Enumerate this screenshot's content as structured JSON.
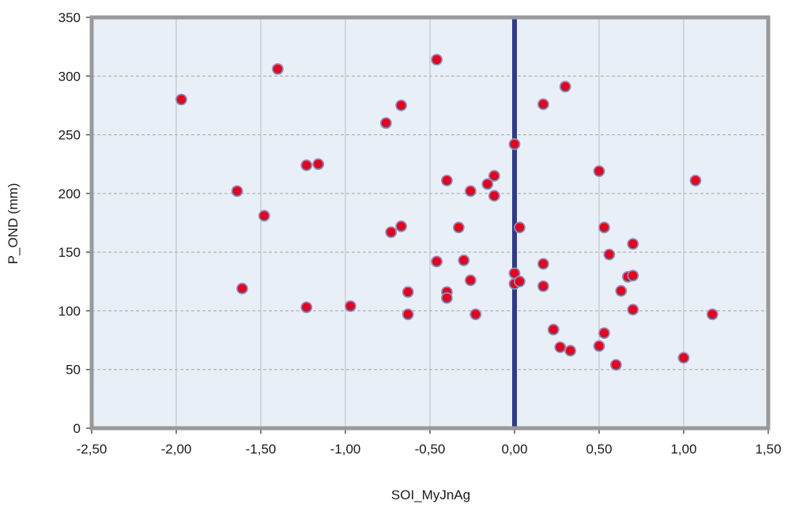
{
  "colors": {
    "plot_background": "#e9eff7",
    "frame": "#999999",
    "gridline": "#a6a6a6",
    "vertical_line": "#2e3a8c",
    "marker_fill": "#e8001c",
    "marker_stroke": "#7f93c4"
  },
  "chart_data": {
    "type": "scatter",
    "title": "",
    "xlabel": "SOI_MyJnAg",
    "ylabel": "P_OND (mm)",
    "xlim": [
      -2.5,
      1.5
    ],
    "ylim": [
      0,
      350
    ],
    "x_tick_values": [
      -2.5,
      -2.0,
      -1.5,
      -1.0,
      -0.5,
      0.0,
      0.5,
      1.0,
      1.5
    ],
    "x_tick_labels": [
      "-2,50",
      "-2,00",
      "-1,50",
      "-1,00",
      "-0,50",
      "0,00",
      "0,50",
      "1,00",
      "1,50"
    ],
    "y_tick_values": [
      0,
      50,
      100,
      150,
      200,
      250,
      300,
      350
    ],
    "y_tick_labels": [
      "0",
      "50",
      "100",
      "150",
      "200",
      "250",
      "300",
      "350"
    ],
    "grid": "horizontal dashed",
    "reference_line_x": 0,
    "series": [
      {
        "points": [
          [
            -1.97,
            280
          ],
          [
            -1.4,
            306
          ],
          [
            -1.64,
            202
          ],
          [
            -1.48,
            181
          ],
          [
            -1.61,
            119
          ],
          [
            -1.23,
            224
          ],
          [
            -1.16,
            225
          ],
          [
            -1.23,
            103
          ],
          [
            -0.97,
            104
          ],
          [
            -0.46,
            314
          ],
          [
            -0.76,
            260
          ],
          [
            -0.67,
            275
          ],
          [
            -0.4,
            211
          ],
          [
            -0.26,
            202
          ],
          [
            -0.12,
            215
          ],
          [
            -0.16,
            208
          ],
          [
            -0.12,
            198
          ],
          [
            -0.73,
            167
          ],
          [
            -0.67,
            172
          ],
          [
            -0.33,
            171
          ],
          [
            -0.46,
            142
          ],
          [
            -0.3,
            143
          ],
          [
            -0.26,
            126
          ],
          [
            -0.63,
            116
          ],
          [
            -0.4,
            116
          ],
          [
            -0.4,
            111
          ],
          [
            -0.63,
            97
          ],
          [
            -0.23,
            97
          ],
          [
            0.0,
            242
          ],
          [
            0.03,
            171
          ],
          [
            0.0,
            132
          ],
          [
            0.0,
            123
          ],
          [
            0.03,
            125
          ],
          [
            0.17,
            276
          ],
          [
            0.3,
            291
          ],
          [
            0.17,
            140
          ],
          [
            0.17,
            121
          ],
          [
            0.23,
            84
          ],
          [
            0.27,
            69
          ],
          [
            0.33,
            66
          ],
          [
            0.5,
            219
          ],
          [
            0.53,
            171
          ],
          [
            0.56,
            148
          ],
          [
            0.53,
            81
          ],
          [
            0.5,
            70
          ],
          [
            0.6,
            54
          ],
          [
            0.7,
            157
          ],
          [
            0.67,
            129
          ],
          [
            0.7,
            130
          ],
          [
            0.63,
            117
          ],
          [
            0.7,
            101
          ],
          [
            1.07,
            211
          ],
          [
            1.17,
            97
          ],
          [
            1.0,
            60
          ]
        ]
      }
    ]
  }
}
